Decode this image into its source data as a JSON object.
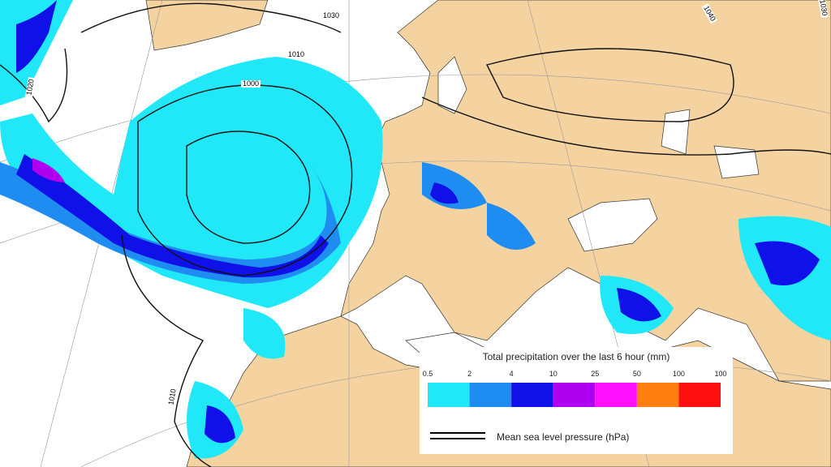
{
  "legend": {
    "title": "Total precipitation over the last 6 hour (mm)",
    "ticks": [
      "0.5",
      "2",
      "4",
      "10",
      "25",
      "50",
      "100",
      "100"
    ],
    "colors": [
      "#20e8f8",
      "#1e8cf0",
      "#1010e8",
      "#b000f0",
      "#ff10ff",
      "#ff8010",
      "#ff1010"
    ]
  },
  "pressure_legend": {
    "label": "Mean sea level pressure (hPa)"
  },
  "isobar_labels": [
    "1030",
    "1010",
    "1000",
    "1040",
    "1020",
    "1030",
    "1010"
  ]
}
